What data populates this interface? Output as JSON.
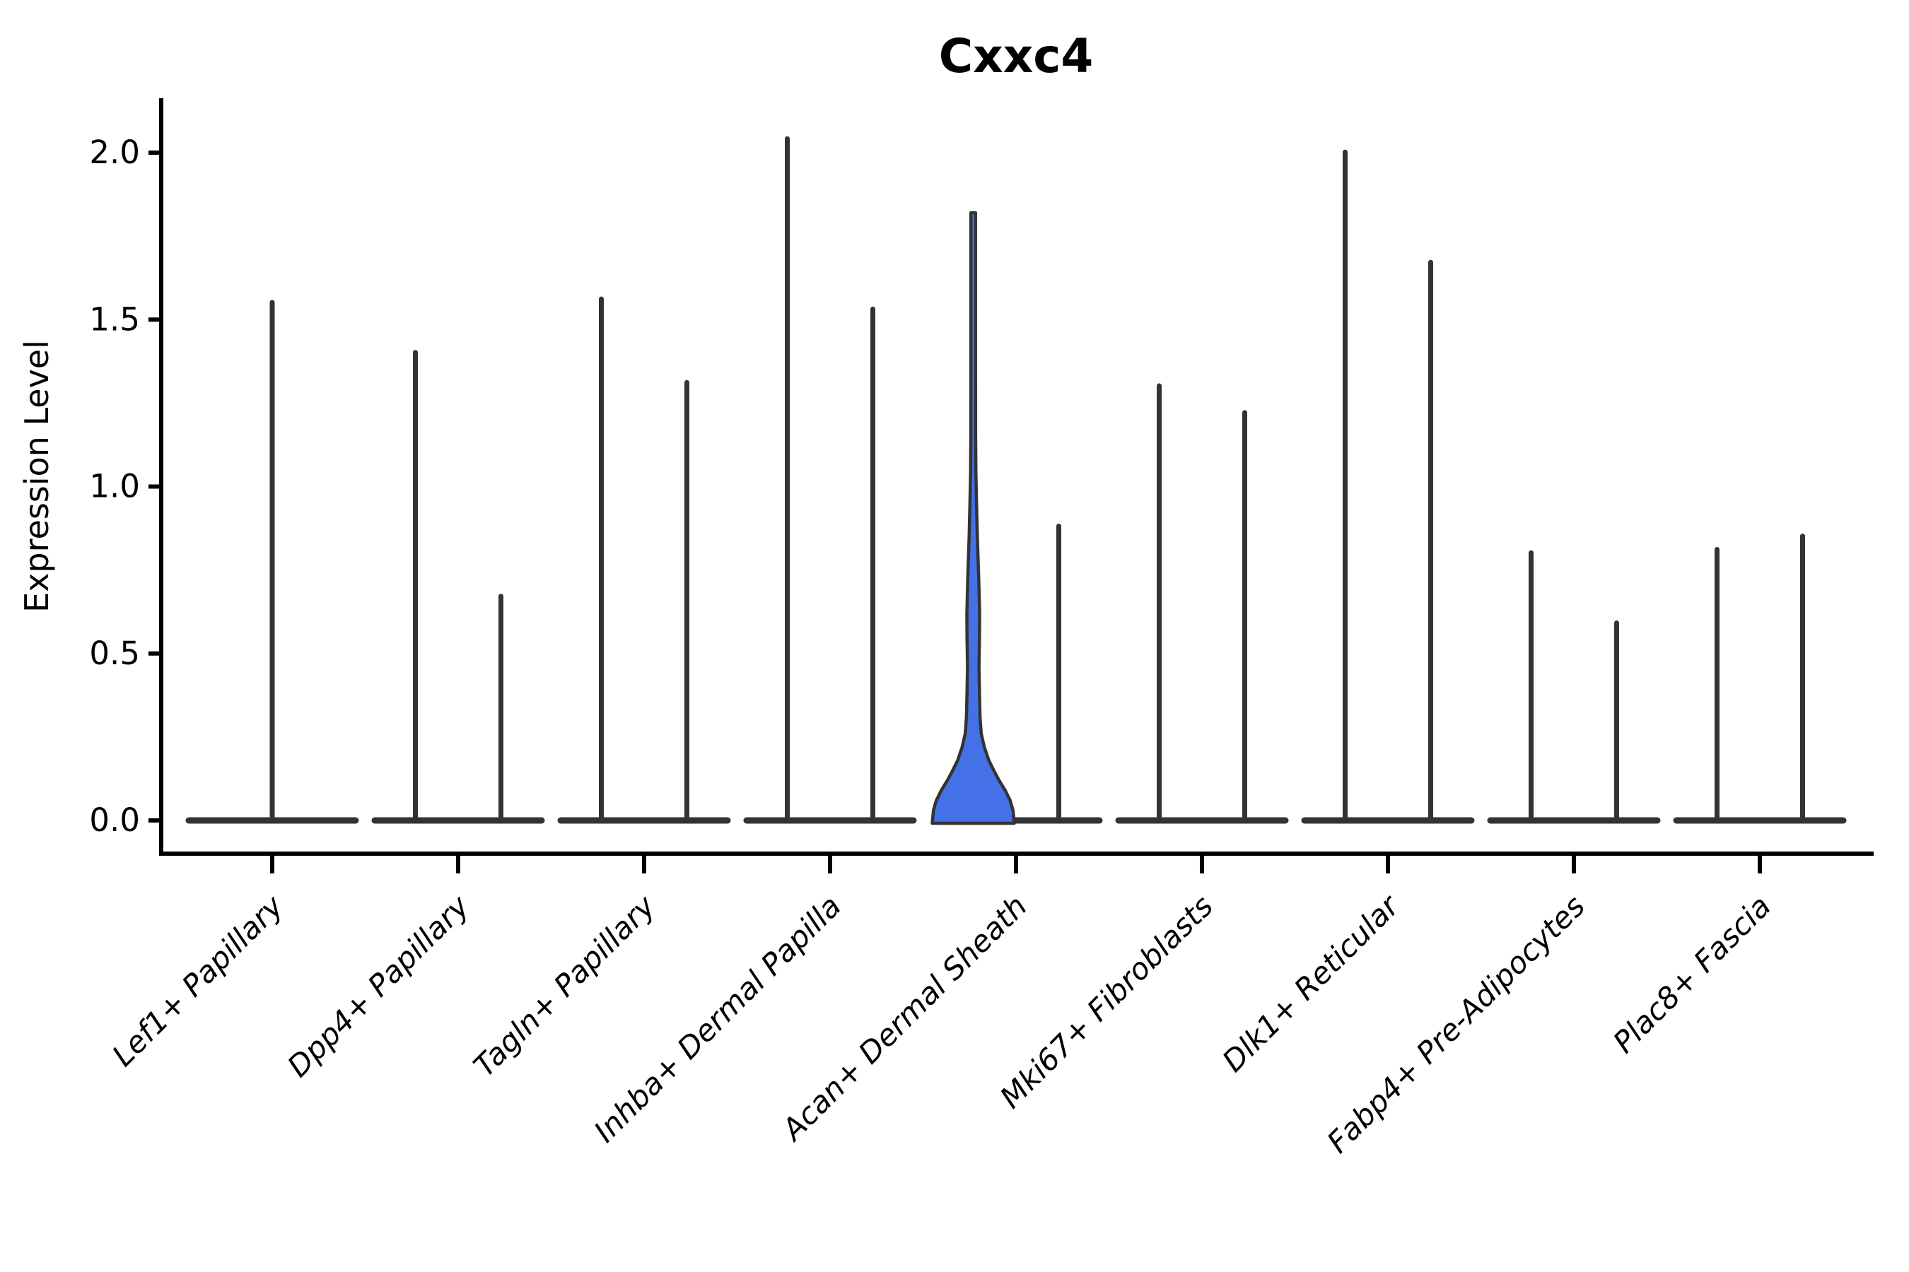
{
  "chart_data": {
    "type": "violin",
    "title": "Cxxc4",
    "xlabel": "",
    "ylabel": "Expression Level",
    "ylim": [
      -0.1,
      2.16
    ],
    "yticks": [
      0.0,
      0.5,
      1.0,
      1.5,
      2.0
    ],
    "ytick_labels": [
      "0.0",
      "0.5",
      "1.0",
      "1.5",
      "2.0"
    ],
    "grid": false,
    "legend": "none",
    "categories": [
      "Lef1+ Papillary",
      "Dpp4+ Papillary",
      "Tagln+ Papillary",
      "Inhba+ Dermal Papilla",
      "Acan+ Dermal Sheath",
      "Mki67+ Fibroblasts",
      "Dlk1+ Reticular",
      "Fabp4+ Pre-Adipocytes",
      "Plac8+ Fascia"
    ],
    "violins": [
      {
        "category": "Lef1+ Papillary",
        "side": "full",
        "max": 1.56,
        "filled": false
      },
      {
        "category": "Dpp4+ Papillary",
        "side": "left",
        "max": 1.41,
        "filled": false
      },
      {
        "category": "Dpp4+ Papillary",
        "side": "right",
        "max": 0.68,
        "filled": false
      },
      {
        "category": "Tagln+ Papillary",
        "side": "left",
        "max": 1.57,
        "filled": false
      },
      {
        "category": "Tagln+ Papillary",
        "side": "right",
        "max": 1.32,
        "filled": false
      },
      {
        "category": "Inhba+ Dermal Papilla",
        "side": "left",
        "max": 2.05,
        "filled": false
      },
      {
        "category": "Inhba+ Dermal Papilla",
        "side": "right",
        "max": 1.54,
        "filled": false
      },
      {
        "category": "Acan+ Dermal Sheath",
        "side": "left",
        "max": 1.82,
        "filled": true,
        "fill_color": "#4571e8",
        "profile": [
          [
            0.0,
            1.0
          ],
          [
            0.03,
            0.97
          ],
          [
            0.06,
            0.9
          ],
          [
            0.09,
            0.78
          ],
          [
            0.12,
            0.63
          ],
          [
            0.15,
            0.5
          ],
          [
            0.18,
            0.38
          ],
          [
            0.22,
            0.27
          ],
          [
            0.26,
            0.195
          ],
          [
            0.31,
            0.165
          ],
          [
            0.38,
            0.152
          ],
          [
            0.46,
            0.14
          ],
          [
            0.55,
            0.152
          ],
          [
            0.62,
            0.155
          ],
          [
            0.72,
            0.135
          ],
          [
            0.85,
            0.1
          ],
          [
            0.95,
            0.08
          ],
          [
            1.04,
            0.065
          ],
          [
            1.15,
            0.058
          ],
          [
            1.35,
            0.057
          ],
          [
            1.82,
            0.057
          ]
        ]
      },
      {
        "category": "Acan+ Dermal Sheath",
        "side": "right",
        "max": 0.89,
        "filled": false
      },
      {
        "category": "Mki67+ Fibroblasts",
        "side": "left",
        "max": 1.31,
        "filled": false
      },
      {
        "category": "Mki67+ Fibroblasts",
        "side": "right",
        "max": 1.23,
        "filled": false
      },
      {
        "category": "Dlk1+ Reticular",
        "side": "left",
        "max": 2.01,
        "filled": false
      },
      {
        "category": "Dlk1+ Reticular",
        "side": "right",
        "max": 1.68,
        "filled": false
      },
      {
        "category": "Fabp4+ Pre-Adipocytes",
        "side": "left",
        "max": 0.81,
        "filled": false
      },
      {
        "category": "Fabp4+ Pre-Adipocytes",
        "side": "right",
        "max": 0.6,
        "filled": false
      },
      {
        "category": "Plac8+ Fascia",
        "side": "left",
        "max": 0.82,
        "filled": false
      },
      {
        "category": "Plac8+ Fascia",
        "side": "right",
        "max": 0.86,
        "filled": false
      }
    ],
    "colors": {
      "violin_fill": "#4571e8",
      "violin_line": "#333333",
      "axis": "#000000",
      "text": "#000000",
      "background": "#ffffff"
    }
  }
}
